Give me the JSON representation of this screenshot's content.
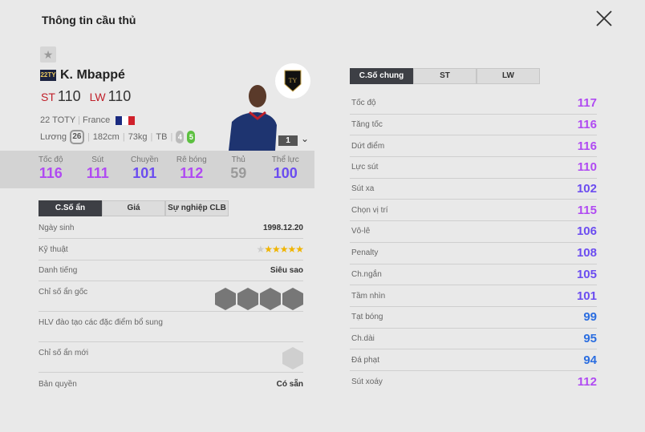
{
  "title": "Thông tin cầu thủ",
  "player": {
    "season_badge": "22TY",
    "name": "K. Mbappé",
    "positions": [
      {
        "pos": "ST",
        "ovr": "110"
      },
      {
        "pos": "LW",
        "ovr": "110"
      }
    ],
    "season": "22 TOTY",
    "nation": "France",
    "salary_label": "Lương",
    "salary": "26",
    "height": "182cm",
    "weight": "73kg",
    "body": "TB",
    "weak_foot": "4",
    "skill": "5",
    "level": "1"
  },
  "summary": [
    {
      "label": "Tốc độ",
      "value": "116",
      "color": "#b04af2"
    },
    {
      "label": "Sút",
      "value": "111",
      "color": "#b04af2"
    },
    {
      "label": "Chuyền",
      "value": "101",
      "color": "#6b4cf0"
    },
    {
      "label": "Rê bóng",
      "value": "112",
      "color": "#b04af2"
    },
    {
      "label": "Thủ",
      "value": "59",
      "color": "#9a9a9a"
    },
    {
      "label": "Thể lực",
      "value": "100",
      "color": "#6b4cf0"
    }
  ],
  "left_tabs": [
    "C.Số ẩn",
    "Giá",
    "Sự nghiệp CLB"
  ],
  "info": {
    "birth_label": "Ngày sinh",
    "birth": "1998.12.20",
    "skill_label": "Kỹ thuật",
    "skill_stars": 5,
    "fame_label": "Danh tiếng",
    "fame": "Siêu sao",
    "traits_label": "Chỉ số ẩn gốc",
    "trainer_label": "HLV đào tạo các đặc điểm bổ sung",
    "new_traits_label": "Chỉ số ẩn mới",
    "license_label": "Bản quyền",
    "license": "Có sẵn"
  },
  "right_tabs": [
    "C.Số chung",
    "ST",
    "LW"
  ],
  "stats": [
    {
      "label": "Tốc độ",
      "value": "117",
      "color": "#b04af2"
    },
    {
      "label": "Tăng tốc",
      "value": "116",
      "color": "#b04af2"
    },
    {
      "label": "Dứt điểm",
      "value": "116",
      "color": "#b04af2"
    },
    {
      "label": "Lực sút",
      "value": "110",
      "color": "#b04af2"
    },
    {
      "label": "Sút xa",
      "value": "102",
      "color": "#6b4cf0"
    },
    {
      "label": "Chọn vị trí",
      "value": "115",
      "color": "#b04af2"
    },
    {
      "label": "Vô-lê",
      "value": "106",
      "color": "#6b4cf0"
    },
    {
      "label": "Penalty",
      "value": "108",
      "color": "#6b4cf0"
    },
    {
      "label": "Ch.ngắn",
      "value": "105",
      "color": "#6b4cf0"
    },
    {
      "label": "Tầm nhìn",
      "value": "101",
      "color": "#6b4cf0"
    },
    {
      "label": "Tạt bóng",
      "value": "99",
      "color": "#2a6de0"
    },
    {
      "label": "Ch.dài",
      "value": "95",
      "color": "#2a6de0"
    },
    {
      "label": "Đá phạt",
      "value": "94",
      "color": "#2a6de0"
    },
    {
      "label": "Sút xoáy",
      "value": "112",
      "color": "#b04af2"
    }
  ]
}
